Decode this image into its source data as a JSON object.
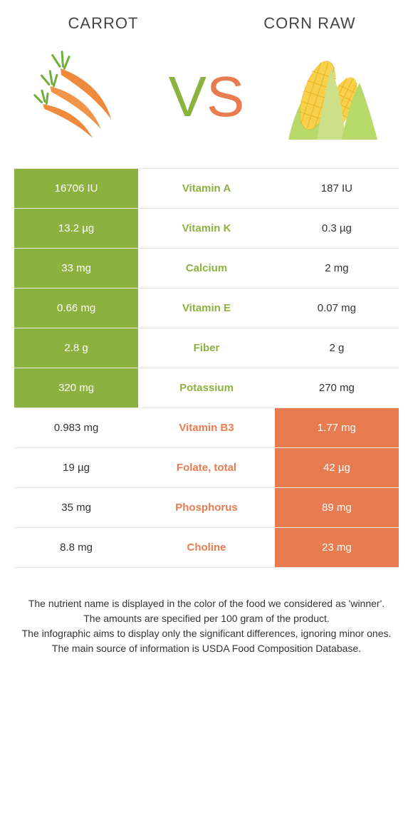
{
  "colors": {
    "left": "#8bb23e",
    "right": "#e87b4f",
    "text": "#333333",
    "border": "#e9e9e9",
    "bg": "#ffffff"
  },
  "fontsizes": {
    "header": 22,
    "vs": 80,
    "cell": 15,
    "footer": 14
  },
  "headers": {
    "left": "Carrot",
    "right": "Corn raw",
    "vs_v": "V",
    "vs_s": "S"
  },
  "rows": [
    {
      "label": "Vitamin A",
      "left": "16706 IU",
      "right": "187 IU",
      "winner": "left"
    },
    {
      "label": "Vitamin K",
      "left": "13.2 µg",
      "right": "0.3 µg",
      "winner": "left"
    },
    {
      "label": "Calcium",
      "left": "33 mg",
      "right": "2 mg",
      "winner": "left"
    },
    {
      "label": "Vitamin E",
      "left": "0.66 mg",
      "right": "0.07 mg",
      "winner": "left"
    },
    {
      "label": "Fiber",
      "left": "2.8 g",
      "right": "2 g",
      "winner": "left"
    },
    {
      "label": "Potassium",
      "left": "320 mg",
      "right": "270 mg",
      "winner": "left"
    },
    {
      "label": "Vitamin B3",
      "left": "0.983 mg",
      "right": "1.77 mg",
      "winner": "right"
    },
    {
      "label": "Folate, total",
      "left": "19 µg",
      "right": "42 µg",
      "winner": "right"
    },
    {
      "label": "Phosphorus",
      "left": "35 mg",
      "right": "89 mg",
      "winner": "right"
    },
    {
      "label": "Choline",
      "left": "8.8 mg",
      "right": "23 mg",
      "winner": "right"
    }
  ],
  "footer": {
    "line1": "The nutrient name is displayed in the color of the food we considered as 'winner'.",
    "line2": "The amounts are specified per 100 gram of the product.",
    "line3": "The infographic aims to display only the significant differences, ignoring minor ones.",
    "line4": "The main source of information is USDA Food Composition Database."
  }
}
